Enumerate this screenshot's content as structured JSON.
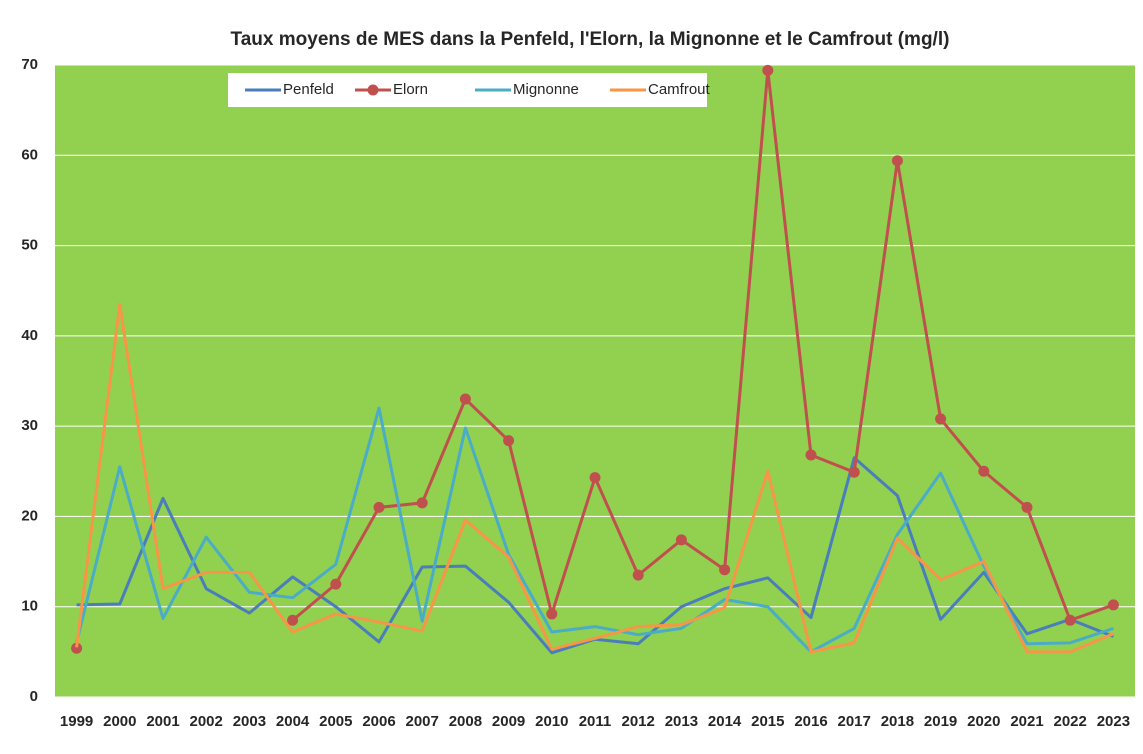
{
  "chart_data": {
    "type": "line",
    "title": "Taux moyens de MES dans la Penfeld, l'Elorn, la Mignonne et le Camfrout (mg/l)",
    "categories": [
      "1999",
      "2000",
      "2001",
      "2002",
      "2003",
      "2004",
      "2005",
      "2006",
      "2007",
      "2008",
      "2009",
      "2010",
      "2011",
      "2012",
      "2013",
      "2014",
      "2015",
      "2016",
      "2017",
      "2018",
      "2019",
      "2020",
      "2021",
      "2022",
      "2023"
    ],
    "series": [
      {
        "name": "Penfeld",
        "color": "#4a7ebb",
        "values": [
          10.2,
          10.3,
          22,
          12,
          9.3,
          13.3,
          10,
          6.1,
          14.4,
          14.5,
          10.5,
          4.9,
          6.4,
          5.9,
          10,
          12,
          13.2,
          8.8,
          26.5,
          22.3,
          8.6,
          13.8,
          7,
          8.6,
          6.7
        ]
      },
      {
        "name": "Elorn",
        "color": "#c0504d",
        "markers": true,
        "values": [
          5.4,
          null,
          null,
          null,
          null,
          8.5,
          12.5,
          21,
          21.5,
          33,
          28.4,
          9.2,
          24.3,
          13.5,
          17.4,
          14.1,
          69.4,
          26.8,
          24.9,
          59.4,
          30.8,
          25,
          21,
          8.5,
          10.2
        ]
      },
      {
        "name": "Mignonne",
        "color": "#4bacc6",
        "values": [
          6,
          25.5,
          8.7,
          17.7,
          11.6,
          11,
          14.7,
          32,
          8.4,
          29.8,
          15.8,
          7.2,
          7.8,
          6.9,
          7.6,
          10.8,
          10,
          5,
          7.6,
          18,
          24.8,
          14.5,
          5.9,
          6,
          7.6
        ]
      },
      {
        "name": "Camfrout",
        "color": "#f79646",
        "values": [
          5.5,
          43.5,
          12,
          13.8,
          13.8,
          7.2,
          9.2,
          8.3,
          7.3,
          19.6,
          15.5,
          5.3,
          6.5,
          7.8,
          8,
          9.9,
          25,
          5,
          6,
          17.6,
          13,
          15,
          5,
          5,
          7
        ]
      }
    ],
    "ylim": [
      0,
      70
    ],
    "yticks": [
      0,
      10,
      20,
      30,
      40,
      50,
      60,
      70
    ],
    "grid": true,
    "plot_background": "#92d050",
    "legend": "top"
  }
}
